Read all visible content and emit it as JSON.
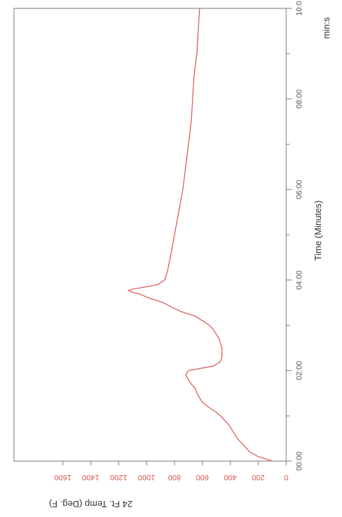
{
  "chart_data": {
    "type": "line",
    "orientation": "rotated-90-clockwise",
    "title": "",
    "xlabel": "Time (Minutes)",
    "x_unit_label": "min:s",
    "ylabel": "24 Ft. Temp (Deg. F)",
    "xlim": [
      0,
      10
    ],
    "ylim": [
      0,
      1600
    ],
    "x_ticks": [
      "00:00",
      "02:00",
      "04:00",
      "06:00",
      "08:00",
      "10:0"
    ],
    "y_ticks": [
      "0",
      "200",
      "400",
      "600",
      "800",
      "1000",
      "1200",
      "1400",
      "1600"
    ],
    "grid": false,
    "legend": "none",
    "series": [
      {
        "color": "#d9534f",
        "x": [
          0.0,
          0.1,
          0.2,
          0.3,
          0.4,
          0.5,
          0.6,
          0.7,
          0.8,
          0.9,
          1.0,
          1.1,
          1.2,
          1.3,
          1.4,
          1.5,
          1.6,
          1.7,
          1.8,
          1.9,
          2.0,
          2.1,
          2.2,
          2.3,
          2.4,
          2.5,
          2.6,
          2.7,
          2.8,
          2.9,
          3.0,
          3.1,
          3.2,
          3.3,
          3.4,
          3.5,
          3.6,
          3.7,
          3.73,
          3.77,
          3.8,
          3.85,
          3.9,
          4.0,
          4.2,
          4.5,
          5.0,
          5.5,
          6.0,
          6.5,
          7.0,
          7.5,
          8.0,
          8.5,
          9.0,
          9.5,
          10.0
        ],
        "y": [
          100,
          200,
          260,
          290,
          320,
          350,
          370,
          390,
          410,
          440,
          470,
          510,
          560,
          600,
          620,
          640,
          650,
          680,
          700,
          720,
          700,
          520,
          470,
          460,
          460,
          460,
          470,
          480,
          500,
          520,
          550,
          600,
          650,
          750,
          820,
          880,
          980,
          1060,
          1100,
          1130,
          1100,
          1000,
          920,
          870,
          850,
          830,
          800,
          770,
          740,
          720,
          700,
          680,
          670,
          660,
          640,
          630,
          620
        ]
      }
    ]
  }
}
